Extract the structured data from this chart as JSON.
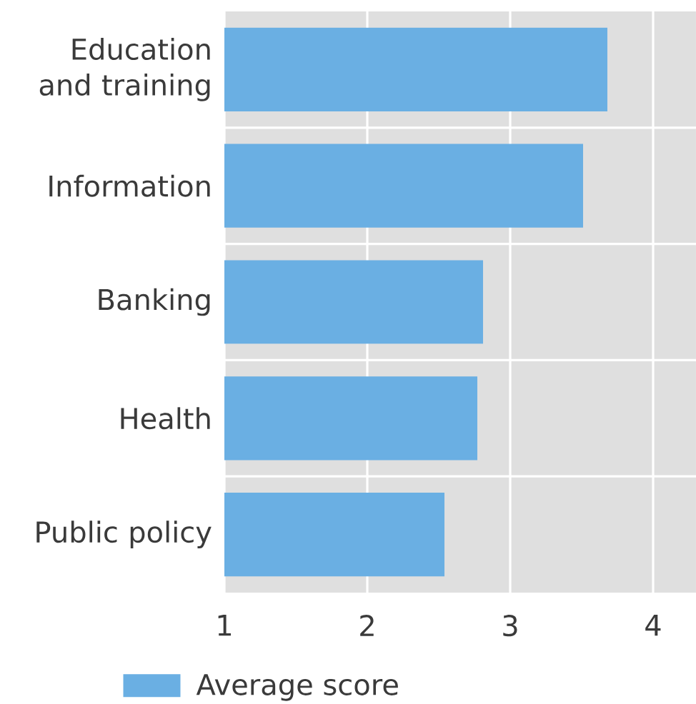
{
  "chart_data": {
    "type": "bar",
    "orientation": "horizontal",
    "categories": [
      "Education and training",
      "Information",
      "Banking",
      "Health",
      "Public policy"
    ],
    "series": [
      {
        "name": "Average score",
        "color": "#6aafe3",
        "values": [
          3.68,
          3.51,
          2.81,
          2.77,
          2.54
        ]
      }
    ],
    "xlim": [
      1,
      4.3
    ],
    "xticks": [
      1,
      2,
      3,
      4
    ],
    "grid": true,
    "legend": "bottom left"
  }
}
